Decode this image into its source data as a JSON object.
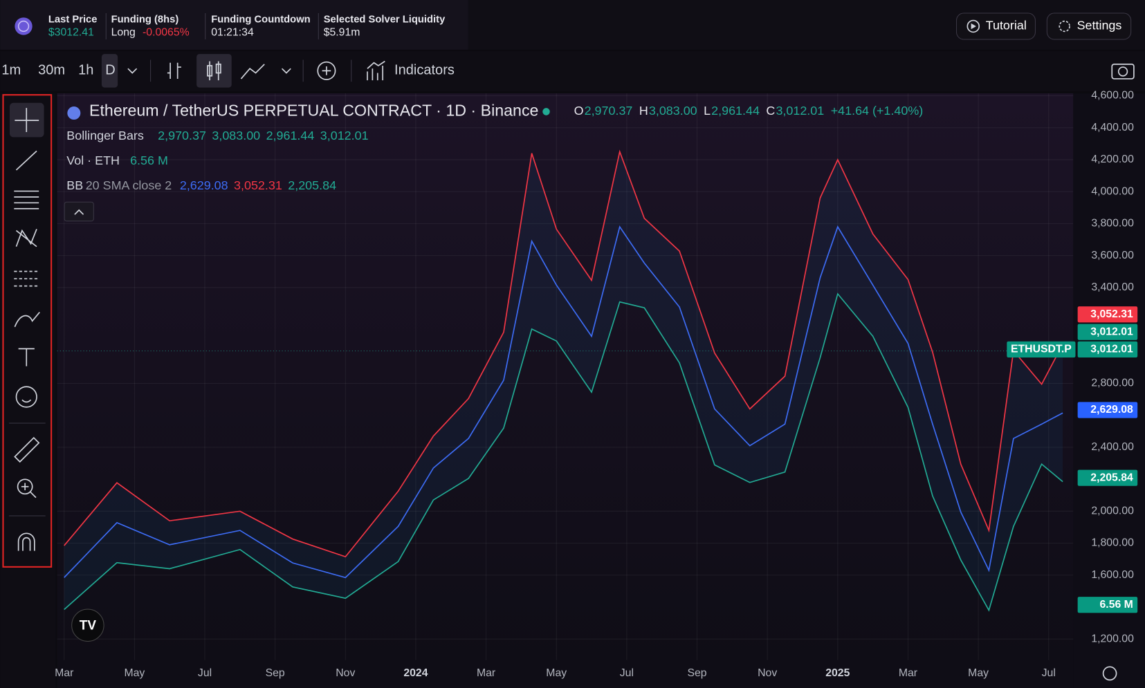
{
  "header": {
    "stats": [
      {
        "label": "Last Price",
        "value": "$3012.41"
      },
      {
        "label": "Funding (8hs)",
        "value": "Long",
        "value2": "-0.0065%"
      },
      {
        "label": "Funding Countdown",
        "value": "01:21:34"
      },
      {
        "label": "Selected Solver Liquidity",
        "value": "$5.91m"
      }
    ],
    "buttons": [
      "Tutorial",
      "Settings"
    ]
  },
  "toolbar": {
    "intervals": [
      "1m",
      "30m",
      "1h",
      "D"
    ],
    "indicators": "Indicators"
  },
  "legend": {
    "title": "Ethereum / TetherUS PERPETUAL CONTRACT · 1D · Binance",
    "ohlc": [
      {
        "label": "O",
        "value": "2,970.37"
      },
      {
        "label": "H",
        "value": "3,083.00"
      },
      {
        "label": "L",
        "value": "2,961.44"
      },
      {
        "label": "C",
        "value": "3,012.01"
      }
    ],
    "change": "+41.64 (+1.40%)",
    "bars_name": "Bollinger Bars",
    "bars_values": [
      "2,970.37",
      "3,083.00",
      "2,961.44",
      "3,012.01"
    ],
    "vol_name": "Vol · ETH",
    "vol_value": "6.56 M",
    "bb_name": "BB",
    "bb_params": "20 SMA close 2",
    "bb_values": [
      "2,629.08",
      "3,052.31",
      "2,205.84"
    ]
  },
  "price_labels": [
    {
      "text": "3,052.31",
      "color": "#f23645"
    },
    {
      "text": "3,012.01",
      "color": "#089981"
    },
    {
      "text": "3,012.01",
      "color": "#089981"
    },
    {
      "text": "2,629.08",
      "color": "#2962ff"
    },
    {
      "text": "2,205.84",
      "color": "#089981"
    },
    {
      "text": "6.56 M",
      "color": "#089981"
    }
  ],
  "symbol_label": "ETHUSDT.P",
  "chart_data": {
    "type": "line",
    "x": [
      0,
      1.5,
      3,
      5,
      6.5,
      8,
      9.5,
      10.5,
      11.5,
      12.5,
      13.3,
      14,
      15,
      15.8,
      16.5,
      17.5,
      18.5,
      19.5,
      20.5,
      21.5,
      22,
      23,
      24,
      24.7,
      25.5,
      26.3,
      27,
      27.8,
      28.4
    ],
    "series": [
      {
        "name": "Upper",
        "color": "#f23645",
        "values": [
          1785,
          2178,
          1940,
          2000,
          1826,
          1715,
          2125,
          2470,
          2705,
          3120,
          4240,
          3765,
          3445,
          4250,
          3833,
          3628,
          2990,
          2640,
          2845,
          3960,
          4200,
          3735,
          3450,
          2995,
          2295,
          1880,
          3005,
          2795,
          3045
        ]
      },
      {
        "name": "Basis",
        "color": "#3d6cf5",
        "values": [
          1585,
          1928,
          1790,
          1880,
          1676,
          1585,
          1905,
          2270,
          2455,
          2820,
          3690,
          3415,
          3095,
          3780,
          3553,
          3278,
          2640,
          2410,
          2545,
          3460,
          3780,
          3415,
          3050,
          2545,
          1995,
          1630,
          2455,
          2545,
          2615
        ]
      },
      {
        "name": "Lower",
        "color": "#22ab94",
        "values": [
          1385,
          1678,
          1640,
          1760,
          1526,
          1455,
          1685,
          2070,
          2205,
          2520,
          3140,
          3065,
          2745,
          3310,
          3273,
          2928,
          2290,
          2180,
          2245,
          2960,
          3360,
          3095,
          2650,
          2095,
          1695,
          1380,
          1905,
          2295,
          2185
        ]
      }
    ],
    "xlim": [
      -0.2,
      28.7
    ],
    "xticks": [
      {
        "value": 0,
        "label": "Mar"
      },
      {
        "value": 2,
        "label": "May"
      },
      {
        "value": 4,
        "label": "Jul"
      },
      {
        "value": 6,
        "label": "Sep"
      },
      {
        "value": 8,
        "label": "Nov"
      },
      {
        "value": 10,
        "label": "2024"
      },
      {
        "value": 12,
        "label": "Mar"
      },
      {
        "value": 14,
        "label": "May"
      },
      {
        "value": 16,
        "label": "Jul"
      },
      {
        "value": 18,
        "label": "Sep"
      },
      {
        "value": 20,
        "label": "Nov"
      },
      {
        "value": 22,
        "label": "2025"
      },
      {
        "value": 24,
        "label": "Mar"
      },
      {
        "value": 26,
        "label": "May"
      },
      {
        "value": 28,
        "label": "Jul"
      }
    ],
    "ylim": [
      1067,
      4615
    ],
    "yticks": [
      {
        "value": 1200,
        "label": "1,200.00"
      },
      {
        "value": 1600,
        "label": "1,600.00"
      },
      {
        "value": 1800,
        "label": "1,800.00"
      },
      {
        "value": 2000,
        "label": "2,000.00"
      },
      {
        "value": 2400,
        "label": "2,400.00"
      },
      {
        "value": 2800,
        "label": "2,800.00"
      },
      {
        "value": 3400,
        "label": "3,400.00"
      },
      {
        "value": 3600,
        "label": "3,600.00"
      },
      {
        "value": 3800,
        "label": "3,800.00"
      },
      {
        "value": 4000,
        "label": "4,000.00"
      },
      {
        "value": 4200,
        "label": "4,200.00"
      },
      {
        "value": 4400,
        "label": "4,400.00"
      },
      {
        "value": 4600,
        "label": "4,600.00"
      }
    ],
    "grid": true
  }
}
